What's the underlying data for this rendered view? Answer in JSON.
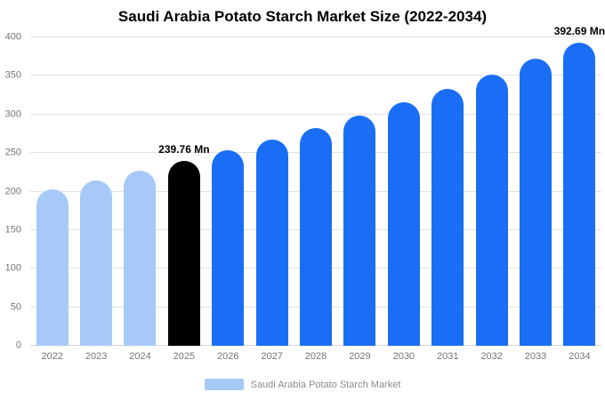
{
  "title": "Saudi Arabia Potato Starch Market Size (2022-2034)",
  "legend": {
    "label": "Saudi Arabia Potato Starch Market",
    "swatch_color": "#a6c9f8"
  },
  "colors": {
    "historical_bar": "#a6c9f8",
    "highlight_bar": "#000000",
    "forecast_bar": "#1a6ef5",
    "gridline": "#e3e3e3",
    "axis_text": "#757575"
  },
  "chart_data": {
    "type": "bar",
    "title": "Saudi Arabia Potato Starch Market Size (2022-2034)",
    "xlabel": "",
    "ylabel": "",
    "unit": "Mn",
    "grid": true,
    "legend_position": "bottom",
    "ylim": [
      0,
      400
    ],
    "yticks": [
      0,
      50,
      100,
      150,
      200,
      250,
      300,
      350,
      400
    ],
    "categories": [
      "2022",
      "2023",
      "2024",
      "2025",
      "2026",
      "2027",
      "2028",
      "2029",
      "2030",
      "2031",
      "2032",
      "2033",
      "2034"
    ],
    "values": [
      203.4,
      214.9,
      227.0,
      239.76,
      253.3,
      267.6,
      282.7,
      298.6,
      315.5,
      333.3,
      352.1,
      372.0,
      392.69
    ],
    "bar_colors": [
      "#a6c9f8",
      "#a6c9f8",
      "#a6c9f8",
      "#000000",
      "#1a6ef5",
      "#1a6ef5",
      "#1a6ef5",
      "#1a6ef5",
      "#1a6ef5",
      "#1a6ef5",
      "#1a6ef5",
      "#1a6ef5",
      "#1a6ef5"
    ],
    "annotations": [
      {
        "index": 3,
        "text": "239.76 Mn"
      },
      {
        "index": 12,
        "text": "392.69 Mn"
      }
    ]
  }
}
